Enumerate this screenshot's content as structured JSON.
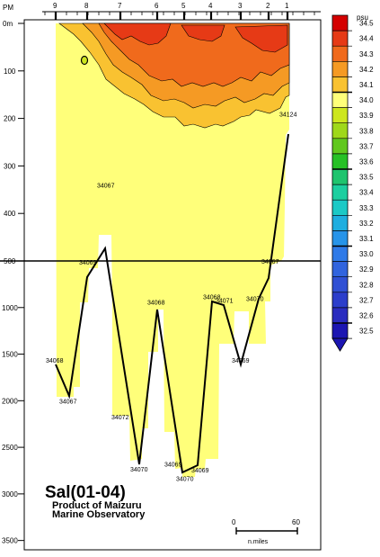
{
  "chart_data": {
    "type": "heatmap",
    "title": "Sal(01-04)",
    "subtitle_lines": [
      "Product of Maizuru",
      "Marine Observatory"
    ],
    "top_axis_label": "PM",
    "stations": [
      "9",
      "8",
      "7",
      "6",
      "5",
      "4",
      "3",
      "2",
      "1"
    ],
    "y_ticks_upper": [
      "0m",
      "100",
      "200",
      "300",
      "400",
      "500"
    ],
    "y_ticks_lower": [
      "1000",
      "1500",
      "2000",
      "2500",
      "3000",
      "3500"
    ],
    "y_upper_range": [
      0,
      500
    ],
    "y_lower_range": [
      500,
      3600
    ],
    "legend": {
      "unit": "psu",
      "levels": [
        "34.5",
        "34.4",
        "34.3",
        "34.2",
        "34.1",
        "34.0",
        "33.9",
        "33.8",
        "33.7",
        "33.6",
        "33.5",
        "33.4",
        "33.3",
        "33.2",
        "33.1",
        "33.0",
        "32.9",
        "32.8",
        "32.7",
        "32.6",
        "32.5"
      ],
      "colors": [
        "#d40000",
        "#e63a16",
        "#f06a1c",
        "#f59a24",
        "#f9c231",
        "#ffff7a",
        "#cde61e",
        "#9fd81a",
        "#61c81e",
        "#27c126",
        "#1fc46e",
        "#1ccfa0",
        "#1bc9c6",
        "#1eaee0",
        "#2794e9",
        "#2f7ae8",
        "#3164de",
        "#3050d4",
        "#2c3ecb",
        "#2a2cbf",
        "#1c16b2"
      ]
    },
    "bottom_labels": [
      {
        "text": "34068",
        "depth": 1560
      },
      {
        "text": "34067",
        "depth": 2000
      },
      {
        "text": "34069",
        "depth": 510
      },
      {
        "text": "34067",
        "depth": 340
      },
      {
        "text": "34072",
        "depth": 2170
      },
      {
        "text": "34070",
        "depth": 2730
      },
      {
        "text": "34068",
        "depth": 940
      },
      {
        "text": "34069",
        "depth": 2680
      },
      {
        "text": "34070",
        "depth": 2830
      },
      {
        "text": "34069",
        "depth": 2740
      },
      {
        "text": "34068",
        "depth": 880
      },
      {
        "text": "34071",
        "depth": 920
      },
      {
        "text": "34069",
        "depth": 1560
      },
      {
        "text": "34070",
        "depth": 900
      },
      {
        "text": "34067",
        "depth": 500
      },
      {
        "text": "34124",
        "depth": 190
      }
    ],
    "scale_bar": {
      "left": "0",
      "right": "60",
      "unit": "n.miles"
    }
  }
}
